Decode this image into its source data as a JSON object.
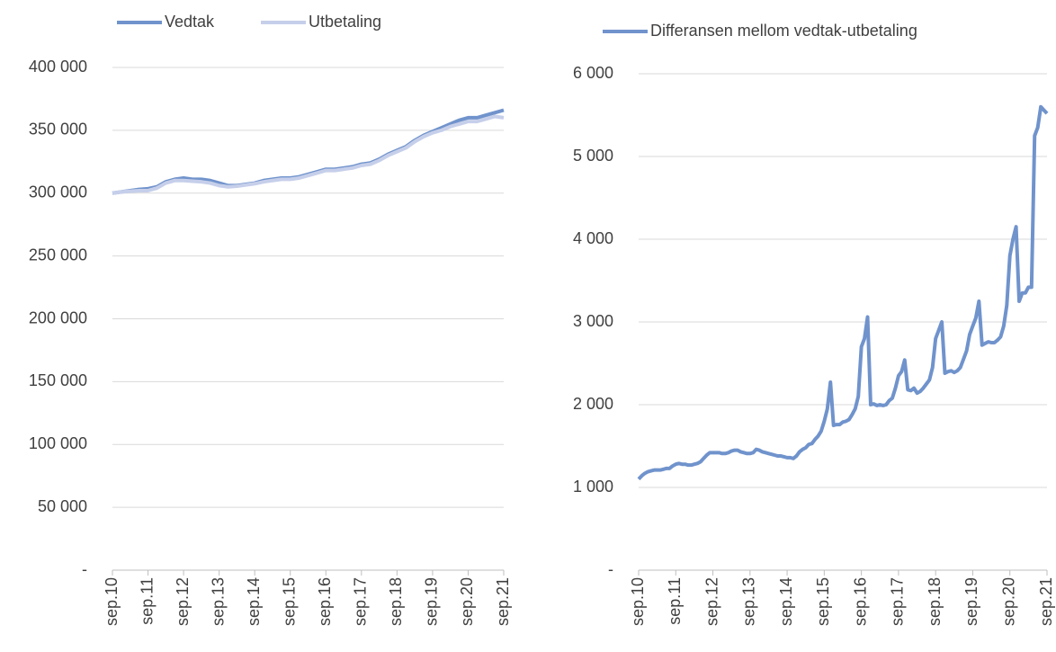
{
  "chart_data": [
    {
      "type": "line",
      "categories": [
        "sep.10",
        null,
        null,
        null,
        "sep.11",
        null,
        null,
        null,
        "sep.12",
        null,
        null,
        null,
        "sep.13",
        null,
        null,
        null,
        "sep.14",
        null,
        null,
        null,
        "sep.15",
        null,
        null,
        null,
        "sep.16",
        null,
        null,
        null,
        "sep.17",
        null,
        null,
        null,
        "sep.18",
        null,
        null,
        null,
        "sep.19",
        null,
        null,
        null,
        "sep.20",
        null,
        null,
        null,
        "sep.21"
      ],
      "series": [
        {
          "name": "Vedtak",
          "color": "#7093cc",
          "values": [
            300000,
            301000,
            302000,
            303000,
            303500,
            305000,
            309000,
            311000,
            312000,
            311000,
            311000,
            310000,
            308000,
            306000,
            306000,
            307000,
            308000,
            310000,
            311000,
            312000,
            312000,
            313000,
            315000,
            317000,
            319000,
            319000,
            320000,
            321000,
            323000,
            324000,
            327000,
            331000,
            334000,
            337000,
            342000,
            346000,
            349000,
            352000,
            355000,
            358000,
            360000,
            360000,
            362000,
            364000,
            366000
          ]
        },
        {
          "name": "Utbetaling",
          "color": "#c6cfea",
          "values": [
            300000,
            301000,
            301500,
            302000,
            302000,
            304000,
            308000,
            310000,
            310000,
            309500,
            309000,
            308000,
            306000,
            305000,
            305500,
            306500,
            307500,
            309000,
            310000,
            311000,
            311000,
            312000,
            314000,
            316000,
            318000,
            318000,
            319000,
            320000,
            322000,
            323000,
            326000,
            330000,
            333000,
            336000,
            341000,
            345000,
            348000,
            350000,
            353000,
            355000,
            357000,
            357000,
            359000,
            361000,
            360000
          ]
        }
      ],
      "ylim": [
        0,
        400000
      ],
      "yticks": [
        {
          "value": 0,
          "label": "-"
        },
        {
          "value": 50000,
          "label": "50 000"
        },
        {
          "value": 100000,
          "label": "100 000"
        },
        {
          "value": 150000,
          "label": "150 000"
        },
        {
          "value": 200000,
          "label": "200 000"
        },
        {
          "value": 250000,
          "label": "250 000"
        },
        {
          "value": 300000,
          "label": "300 000"
        },
        {
          "value": 350000,
          "label": "350 000"
        },
        {
          "value": 400000,
          "label": "400 000"
        }
      ],
      "grid": true
    },
    {
      "type": "line",
      "categories": [
        "sep.10",
        null,
        null,
        null,
        null,
        null,
        null,
        null,
        null,
        null,
        null,
        null,
        "sep.11",
        null,
        null,
        null,
        null,
        null,
        null,
        null,
        null,
        null,
        null,
        null,
        "sep.12",
        null,
        null,
        null,
        null,
        null,
        null,
        null,
        null,
        null,
        null,
        null,
        "sep.13",
        null,
        null,
        null,
        null,
        null,
        null,
        null,
        null,
        null,
        null,
        null,
        "sep.14",
        null,
        null,
        null,
        null,
        null,
        null,
        null,
        null,
        null,
        null,
        null,
        "sep.15",
        null,
        null,
        null,
        null,
        null,
        null,
        null,
        null,
        null,
        null,
        null,
        "sep.16",
        null,
        null,
        null,
        null,
        null,
        null,
        null,
        null,
        null,
        null,
        null,
        "sep.17",
        null,
        null,
        null,
        null,
        null,
        null,
        null,
        null,
        null,
        null,
        null,
        "sep.18",
        null,
        null,
        null,
        null,
        null,
        null,
        null,
        null,
        null,
        null,
        null,
        "sep.19",
        null,
        null,
        null,
        null,
        null,
        null,
        null,
        null,
        null,
        null,
        null,
        "sep.20",
        null,
        null,
        null,
        null,
        null,
        null,
        null,
        null,
        null,
        null,
        null,
        "sep.21"
      ],
      "series": [
        {
          "name": "Differansen mellom vedtak-utbetaling",
          "color": "#7093cc",
          "values": [
            1100,
            1140,
            1170,
            1190,
            1200,
            1210,
            1210,
            1210,
            1220,
            1230,
            1230,
            1260,
            1280,
            1290,
            1280,
            1280,
            1270,
            1270,
            1280,
            1290,
            1310,
            1350,
            1390,
            1420,
            1420,
            1420,
            1420,
            1410,
            1410,
            1420,
            1440,
            1450,
            1450,
            1430,
            1420,
            1410,
            1410,
            1420,
            1460,
            1450,
            1430,
            1420,
            1410,
            1400,
            1390,
            1380,
            1380,
            1370,
            1360,
            1360,
            1350,
            1380,
            1430,
            1460,
            1480,
            1520,
            1530,
            1580,
            1620,
            1680,
            1800,
            1950,
            2272,
            1750,
            1760,
            1760,
            1790,
            1800,
            1820,
            1880,
            1950,
            2100,
            2700,
            2800,
            3060,
            2000,
            2010,
            1990,
            2000,
            1990,
            2000,
            2050,
            2080,
            2200,
            2350,
            2400,
            2540,
            2180,
            2170,
            2200,
            2140,
            2160,
            2200,
            2250,
            2300,
            2450,
            2800,
            2900,
            3000,
            2380,
            2400,
            2410,
            2390,
            2410,
            2450,
            2550,
            2650,
            2850,
            2950,
            3050,
            3250,
            2720,
            2740,
            2760,
            2750,
            2750,
            2780,
            2820,
            2950,
            3200,
            3800,
            4000,
            4150,
            3250,
            3350,
            3350,
            3420,
            3420,
            5250,
            5350,
            5600,
            5560,
            5520
          ]
        }
      ],
      "ylim": [
        0,
        6000
      ],
      "yticks": [
        {
          "value": 0,
          "label": "-"
        },
        {
          "value": 1000,
          "label": "1 000"
        },
        {
          "value": 2000,
          "label": "2 000"
        },
        {
          "value": 3000,
          "label": "3 000"
        },
        {
          "value": 4000,
          "label": "4 000"
        },
        {
          "value": 5000,
          "label": "5 000"
        },
        {
          "value": 6000,
          "label": "6 000"
        }
      ],
      "grid": true
    }
  ]
}
